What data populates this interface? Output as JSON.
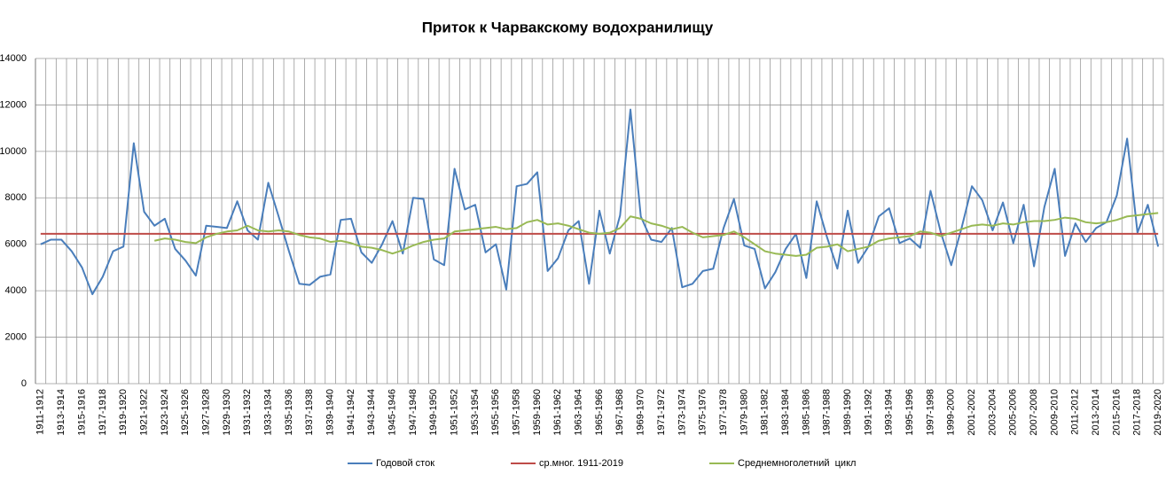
{
  "chart_data": {
    "type": "line",
    "title": "Приток к Чарвакскому водохранилищу",
    "categories": [
      "1911-1912",
      null,
      "1913-1914",
      null,
      "1915-1916",
      null,
      "1917-1918",
      null,
      "1919-1920",
      null,
      "1921-1922",
      null,
      "1923-1924",
      null,
      "1925-1926",
      null,
      "1927-1928",
      null,
      "1929-1930",
      null,
      "1931-1932",
      null,
      "1933-1934",
      null,
      "1935-1936",
      null,
      "1937-1938",
      null,
      "1939-1940",
      null,
      "1941-1942",
      null,
      "1943-1944",
      null,
      "1945-1946",
      null,
      "1947-1948",
      null,
      "1949-1950",
      null,
      "1951-1952",
      null,
      "1953-1954",
      null,
      "1955-1956",
      null,
      "1957-1958",
      null,
      "1959-1960",
      null,
      "1961-1962",
      null,
      "1963-1964",
      null,
      "1965-1966",
      null,
      "1967-1968",
      null,
      "1969-1970",
      null,
      "1971-1972",
      null,
      "1973-1974",
      null,
      "1975-1976",
      null,
      "1977-1978",
      null,
      "1979-1980",
      null,
      "1981-1982",
      null,
      "1983-1984",
      null,
      "1985-1986",
      null,
      "1987-1988",
      null,
      "1989-1990",
      null,
      "1991-1992",
      null,
      "1993-1994",
      null,
      "1995-1996",
      null,
      "1997-1998",
      null,
      "1999-2000",
      null,
      "2001-2002",
      null,
      "2003-2004",
      null,
      "2005-2006",
      null,
      "2007-2008",
      null,
      "2009-2010",
      null,
      "2011-2012",
      null,
      "2013-2014",
      null,
      "2015-2016",
      null,
      "2017-2018",
      null,
      "2019-2020"
    ],
    "series": [
      {
        "name": "Годовой сток",
        "color": "#4a7ebb",
        "values": [
          6000,
          6200,
          6200,
          5700,
          5000,
          3850,
          4600,
          5700,
          5900,
          10350,
          7400,
          6800,
          7100,
          5800,
          5300,
          4650,
          6800,
          6750,
          6700,
          7850,
          6600,
          6200,
          8650,
          7200,
          5700,
          4300,
          4250,
          4600,
          4700,
          7050,
          7100,
          5650,
          5200,
          6000,
          7000,
          5600,
          8000,
          7950,
          5350,
          5100,
          9250,
          7500,
          7700,
          5650,
          6000,
          4050,
          8500,
          8600,
          9100,
          4850,
          5400,
          6600,
          7000,
          4300,
          7450,
          5600,
          7250,
          11800,
          7200,
          6200,
          6100,
          6700,
          4150,
          4300,
          4850,
          4950,
          6700,
          7950,
          5950,
          5800,
          4100,
          4800,
          5800,
          6450,
          4550,
          7850,
          6300,
          4950,
          7450,
          5200,
          5900,
          7200,
          7550,
          6050,
          6250,
          5850,
          8300,
          6500,
          5100,
          6700,
          8500,
          7900,
          6600,
          7800,
          6050,
          7700,
          5050,
          7600,
          9250,
          5500,
          6900,
          6100,
          6700,
          6950,
          8100,
          10550,
          6500,
          7700,
          5900
        ]
      },
      {
        "name": "ср.мног. 1911-2019",
        "color": "#be4b48",
        "values": [
          6450,
          6450,
          6450,
          6450,
          6450,
          6450,
          6450,
          6450,
          6450,
          6450,
          6450,
          6450,
          6450,
          6450,
          6450,
          6450,
          6450,
          6450,
          6450,
          6450,
          6450,
          6450,
          6450,
          6450,
          6450,
          6450,
          6450,
          6450,
          6450,
          6450,
          6450,
          6450,
          6450,
          6450,
          6450,
          6450,
          6450,
          6450,
          6450,
          6450,
          6450,
          6450,
          6450,
          6450,
          6450,
          6450,
          6450,
          6450,
          6450,
          6450,
          6450,
          6450,
          6450,
          6450,
          6450,
          6450,
          6450,
          6450,
          6450,
          6450,
          6450,
          6450,
          6450,
          6450,
          6450,
          6450,
          6450,
          6450,
          6450,
          6450,
          6450,
          6450,
          6450,
          6450,
          6450,
          6450,
          6450,
          6450,
          6450,
          6450,
          6450,
          6450,
          6450,
          6450,
          6450,
          6450,
          6450,
          6450,
          6450,
          6450,
          6450,
          6450,
          6450,
          6450,
          6450,
          6450,
          6450,
          6450,
          6450,
          6450,
          6450,
          6450,
          6450,
          6450,
          6450,
          6450,
          6450,
          6450,
          6450
        ]
      },
      {
        "name": "Среднемноголетний  цикл",
        "color": "#98b954",
        "values": [
          null,
          null,
          null,
          null,
          null,
          null,
          null,
          null,
          null,
          null,
          null,
          6150,
          6250,
          6200,
          6100,
          6050,
          6300,
          6450,
          6550,
          6600,
          6800,
          6600,
          6550,
          6600,
          6550,
          6400,
          6300,
          6250,
          6100,
          6150,
          6050,
          5900,
          5850,
          5750,
          5600,
          5750,
          5950,
          6100,
          6200,
          6250,
          6550,
          6600,
          6650,
          6700,
          6750,
          6650,
          6700,
          6950,
          7050,
          6850,
          6900,
          6800,
          6650,
          6500,
          6450,
          6500,
          6700,
          7200,
          7100,
          6900,
          6800,
          6650,
          6750,
          6500,
          6300,
          6350,
          6400,
          6550,
          6300,
          6000,
          5700,
          5600,
          5550,
          5500,
          5550,
          5850,
          5900,
          6000,
          5700,
          5800,
          5900,
          6150,
          6250,
          6300,
          6350,
          6550,
          6500,
          6350,
          6500,
          6650,
          6800,
          6850,
          6800,
          6900,
          6850,
          6950,
          7000,
          7000,
          7050,
          7150,
          7100,
          6950,
          6900,
          6950,
          7050,
          7200,
          7250,
          7300,
          7350
        ]
      }
    ],
    "ylim": [
      0,
      14000
    ],
    "yticks": [
      0,
      2000,
      4000,
      6000,
      8000,
      10000,
      12000,
      14000
    ],
    "grid": true,
    "legend": "bottom"
  }
}
